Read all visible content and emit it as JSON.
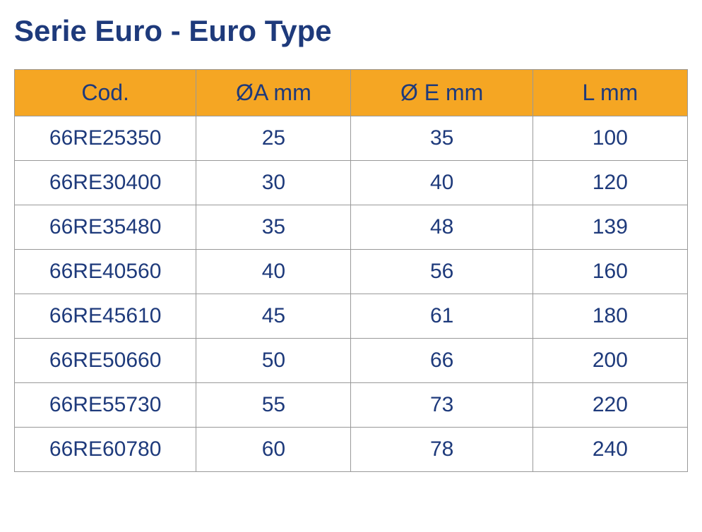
{
  "title": "Serie Euro - Euro Type",
  "table": {
    "columns": [
      "Cod.",
      "ØA mm",
      "Ø E mm",
      "L mm"
    ],
    "rows": [
      [
        "66RE25350",
        "25",
        "35",
        "100"
      ],
      [
        "66RE30400",
        "30",
        "40",
        "120"
      ],
      [
        "66RE35480",
        "35",
        "48",
        "139"
      ],
      [
        "66RE40560",
        "40",
        "56",
        "160"
      ],
      [
        "66RE45610",
        "45",
        "61",
        "180"
      ],
      [
        "66RE50660",
        "50",
        "66",
        "200"
      ],
      [
        "66RE55730",
        "55",
        "73",
        "220"
      ],
      [
        "66RE60780",
        "60",
        "78",
        "240"
      ]
    ],
    "header_bg_color": "#f5a623",
    "text_color": "#1e3a7b",
    "border_color": "#999999",
    "cell_bg_color": "#ffffff",
    "title_fontsize": 42,
    "header_fontsize": 32,
    "cell_fontsize": 30
  }
}
